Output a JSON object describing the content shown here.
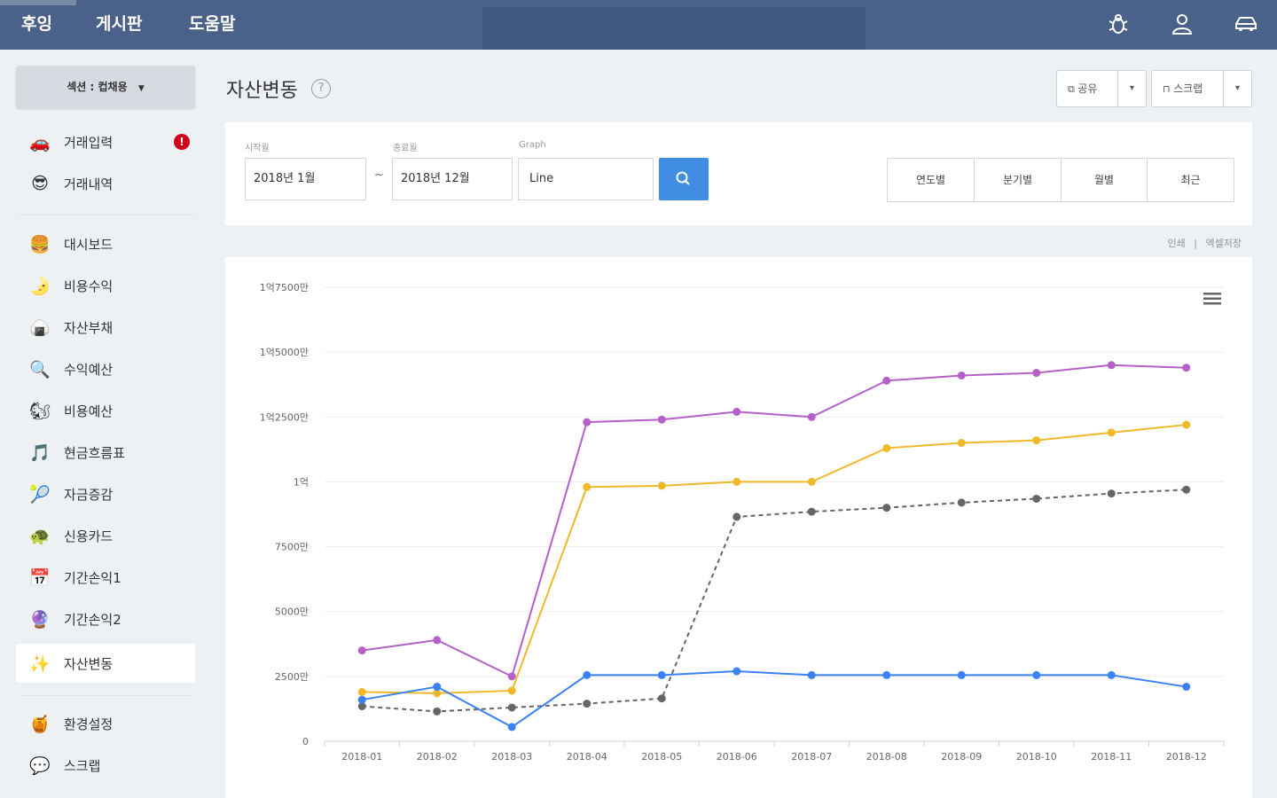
{
  "nav": {
    "brand": "후잉",
    "board": "게시판",
    "help": "도움말"
  },
  "topicons": [
    "bug-icon",
    "user-icon",
    "car-icon"
  ],
  "sidebar": {
    "section_label": "섹션 : 컵채용",
    "items": [
      {
        "emoji": "🚗",
        "label": "거래입력",
        "badge": "!"
      },
      {
        "emoji": "😎",
        "label": "거래내역"
      },
      {
        "emoji": "🍔",
        "label": "대시보드"
      },
      {
        "emoji": "🌛",
        "label": "비용수익"
      },
      {
        "emoji": "🍙",
        "label": "자산부채"
      },
      {
        "emoji": "🔍",
        "label": "수익예산"
      },
      {
        "emoji": "🐿",
        "label": "비용예산"
      },
      {
        "emoji": "🎵",
        "label": "현금흐름표"
      },
      {
        "emoji": "🎾",
        "label": "자금증감"
      },
      {
        "emoji": "🐢",
        "label": "신용카드"
      },
      {
        "emoji": "📅",
        "label": "기간손익1"
      },
      {
        "emoji": "🔮",
        "label": "기간손익2"
      },
      {
        "emoji": "✨",
        "label": "자산변동"
      },
      {
        "emoji": "🍯",
        "label": "환경설정"
      },
      {
        "emoji": "💬",
        "label": "스크랩"
      }
    ]
  },
  "header": {
    "title": "자산변동",
    "help": "?",
    "share_label": "공유",
    "scrap_label": "스크랩",
    "caret": "▾"
  },
  "filters": {
    "start_label": "시작월",
    "start_value": "2018년 1월",
    "end_label": "종료월",
    "end_value": "2018년 12월",
    "graph_label": "Graph",
    "graph_value": "Line",
    "tilde": "~",
    "periods": [
      "연도별",
      "분기별",
      "월별",
      "최근"
    ]
  },
  "links": {
    "print": "인쇄",
    "sep": "|",
    "excel": "엑셀저장"
  },
  "chart_data": {
    "type": "line",
    "x": [
      "2018-01",
      "2018-02",
      "2018-03",
      "2018-04",
      "2018-05",
      "2018-06",
      "2018-07",
      "2018-08",
      "2018-09",
      "2018-10",
      "2018-11",
      "2018-12"
    ],
    "yticks": [
      "0",
      "2500만",
      "5000만",
      "7500만",
      "1억",
      "1억2500만",
      "1억5000만",
      "1억7500만"
    ],
    "ylim": [
      0,
      175000000
    ],
    "grid": true,
    "series": [
      {
        "color": "#b55fc8",
        "dashed": false,
        "values": [
          35000000,
          39000000,
          25000000,
          123000000,
          124000000,
          127000000,
          125000000,
          139000000,
          141000000,
          142000000,
          145000000,
          144000000
        ]
      },
      {
        "color": "#f0b92a",
        "dashed": false,
        "values": [
          19000000,
          18500000,
          19500000,
          98000000,
          98500000,
          100000000,
          100000000,
          113000000,
          115000000,
          116000000,
          119000000,
          122000000
        ]
      },
      {
        "color": "#666666",
        "dashed": true,
        "values": [
          13500000,
          11500000,
          13000000,
          14500000,
          16500000,
          86500000,
          88500000,
          90000000,
          92000000,
          93500000,
          95500000,
          97000000
        ]
      },
      {
        "color": "#3b82f6",
        "dashed": false,
        "values": [
          16000000,
          21000000,
          5500000,
          25500000,
          25500000,
          27000000,
          25500000,
          25500000,
          25500000,
          25500000,
          25500000,
          21000000
        ]
      }
    ]
  }
}
